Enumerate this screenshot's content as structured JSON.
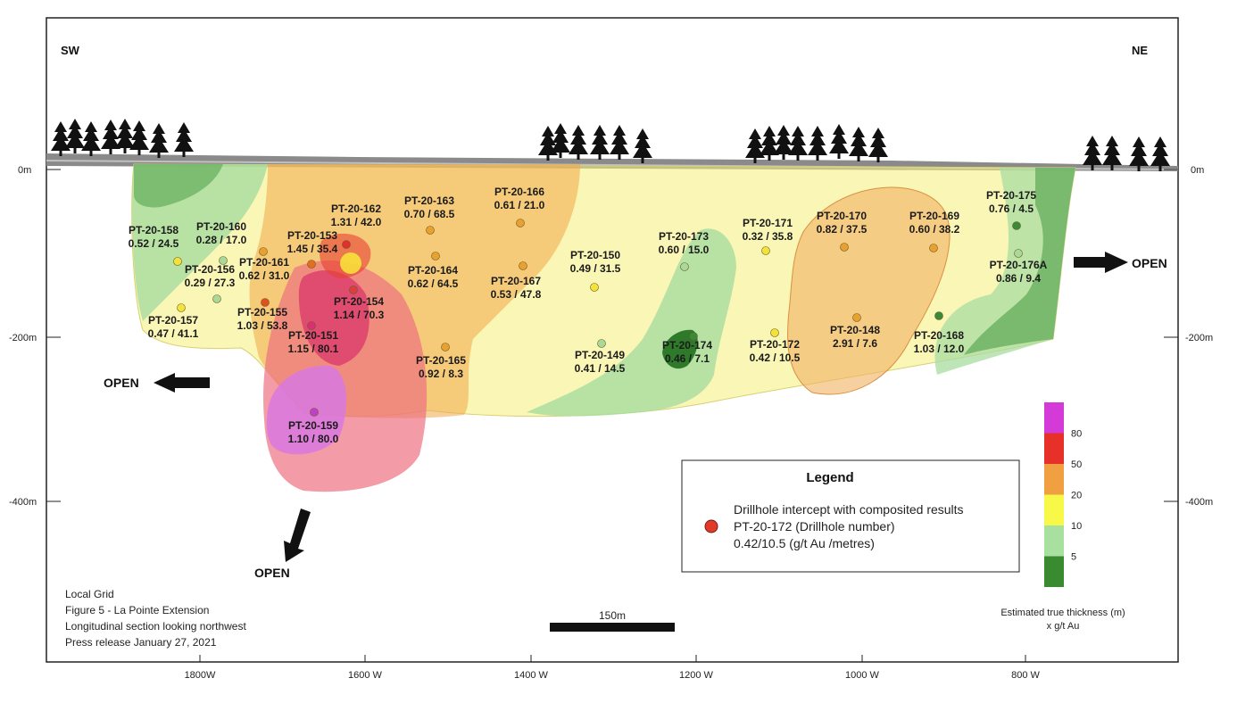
{
  "directions": {
    "left": "SW",
    "right": "NE"
  },
  "depth_labels": {
    "left": [
      "0m",
      "-200m",
      "-400m"
    ],
    "right": [
      "0m",
      "-200m",
      "-400m"
    ]
  },
  "x_axis_labels": [
    "1800W",
    "1600 W",
    "1400 W",
    "1200 W",
    "1000 W",
    "800 W"
  ],
  "open_label": "OPEN",
  "drillholes": [
    {
      "id": "PT-20-158",
      "result": "0.52 / 24.5",
      "color": "#f2e23a"
    },
    {
      "id": "PT-20-160",
      "result": "0.28 / 17.0",
      "color": "#a9d99a"
    },
    {
      "id": "PT-20-156",
      "result": "0.29 / 27.3",
      "color": "#a9d99a"
    },
    {
      "id": "PT-20-157",
      "result": "0.47 / 41.1",
      "color": "#f2e23a"
    },
    {
      "id": "PT-20-161",
      "result": "0.62 / 31.0",
      "color": "#e8a030"
    },
    {
      "id": "PT-20-155",
      "result": "1.03 / 53.8",
      "color": "#e05020"
    },
    {
      "id": "PT-20-153",
      "result": "1.45 / 35.4",
      "color": "#e07020"
    },
    {
      "id": "PT-20-162",
      "result": "1.31 / 42.0",
      "color": "#e03030"
    },
    {
      "id": "PT-20-151",
      "result": "1.15 / 80.1",
      "color": "#d83070"
    },
    {
      "id": "PT-20-154",
      "result": "1.14 / 70.3",
      "color": "#d84040"
    },
    {
      "id": "PT-20-159",
      "result": "1.10 / 80.0",
      "color": "#c040c8"
    },
    {
      "id": "PT-20-163",
      "result": "0.70 / 68.5",
      "color": "#e8a030"
    },
    {
      "id": "PT-20-164",
      "result": "0.62 / 64.5",
      "color": "#e8a030"
    },
    {
      "id": "PT-20-165",
      "result": "0.92 / 8.3",
      "color": "#e8a030"
    },
    {
      "id": "PT-20-166",
      "result": "0.61 / 21.0",
      "color": "#e8a030"
    },
    {
      "id": "PT-20-167",
      "result": "0.53 / 47.8",
      "color": "#e8a030"
    },
    {
      "id": "PT-20-150",
      "result": "0.49 / 31.5",
      "color": "#f2e23a"
    },
    {
      "id": "PT-20-149",
      "result": "0.41 / 14.5",
      "color": "#a9d99a"
    },
    {
      "id": "PT-20-173",
      "result": "0.60 / 15.0",
      "color": "#a9d99a"
    },
    {
      "id": "PT-20-174",
      "result": "0.46 / 7.1",
      "color": "#3a8a3a"
    },
    {
      "id": "PT-20-171",
      "result": "0.32 / 35.8",
      "color": "#f2e23a"
    },
    {
      "id": "PT-20-172",
      "result": "0.42 / 10.5",
      "color": "#f2e23a"
    },
    {
      "id": "PT-20-170",
      "result": "0.82 / 37.5",
      "color": "#e8a030"
    },
    {
      "id": "PT-20-148",
      "result": "2.91  / 7.6",
      "color": "#e8a030"
    },
    {
      "id": "PT-20-169",
      "result": "0.60 / 38.2",
      "color": "#e8a030"
    },
    {
      "id": "PT-20-168",
      "result": "1.03 / 12.0",
      "color": "#3a8a3a"
    },
    {
      "id": "PT-20-175",
      "result": "0.76 / 4.5",
      "color": "#3a8a3a"
    },
    {
      "id": "PT-20-176A",
      "result": "0.86 / 9.4",
      "color": "#a9d99a"
    }
  ],
  "legend": {
    "title": "Legend",
    "lines": [
      "Drillhole intercept with composited results",
      "PT-20-172 (Drillhole number)",
      "0.42/10.5 (g/t Au /metres)"
    ],
    "marker_color": "#e03a2a"
  },
  "colorbar": {
    "ticks": [
      "80",
      "50",
      "20",
      "10",
      "5"
    ],
    "colors": [
      "#d43ad8",
      "#e8302a",
      "#f0a040",
      "#f8f848",
      "#a8e0a0",
      "#3a8a30"
    ],
    "caption": [
      "Estimated true thickness (m)",
      "x g/t Au"
    ]
  },
  "scale_bar": {
    "label": "150m"
  },
  "info_block": [
    "Local Grid",
    "Figure 5 - La Pointe Extension",
    "Longitudinal section looking northwest",
    "Press release January 27, 2021"
  ]
}
